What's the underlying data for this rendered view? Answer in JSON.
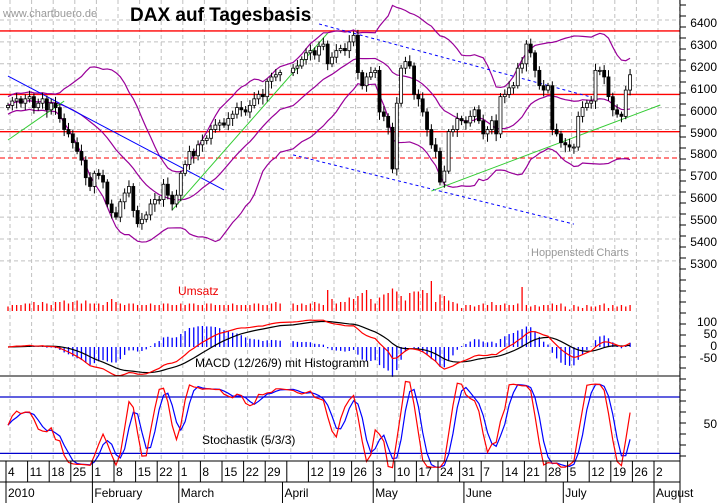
{
  "header": {
    "site": "www.chartbuero.de",
    "title": "DAX auf Tagesbasis",
    "credit": "Hoppenstedt Charts"
  },
  "panels": {
    "volume_label": "Umsatz",
    "macd_label": "MACD (12/26/9) mit Histogramm",
    "stoch_label": "Stochastik (5/3/3)"
  },
  "colors": {
    "candle_down": "#000000",
    "candle_up": "#ffffff",
    "bollinger": "#990099",
    "support_resistance": "#ff0000",
    "trend_down": "#0000ff",
    "trend_up": "#33cc33",
    "volume": "#ff0000",
    "macd": "#ff0000",
    "signal": "#000000",
    "histogram": "#0000ff",
    "stoch_k": "#ff0000",
    "stoch_d": "#0000ff",
    "grid": "#c0c0c0"
  },
  "chart_data": {
    "type": "candlestick",
    "title": "DAX auf Tagesbasis",
    "price_axis": {
      "ticks": [
        6400,
        6300,
        6200,
        6100,
        6000,
        5900,
        5800,
        5700,
        5600,
        5500,
        5400,
        5300
      ],
      "ylim": [
        5200,
        6450
      ]
    },
    "macd_axis": {
      "ticks": [
        100,
        50,
        0,
        -50
      ]
    },
    "stoch_axis": {
      "ticks": [
        50
      ],
      "levels": [
        80,
        20
      ]
    },
    "x_axis": {
      "day_labels": [
        "4",
        "11",
        "18",
        "25",
        "1",
        "8",
        "15",
        "22",
        "1",
        "8",
        "15",
        "22",
        "29",
        "",
        "12",
        "19",
        "26",
        "3",
        "10",
        "17",
        "24",
        "31",
        "7",
        "14",
        "21",
        "28",
        "5",
        "12",
        "19",
        "26",
        "2"
      ],
      "month_labels": [
        {
          "label": "2010",
          "week": 0
        },
        {
          "label": "February",
          "week": 4
        },
        {
          "label": "March",
          "week": 8
        },
        {
          "label": "April",
          "week": 12.8
        },
        {
          "label": "May",
          "week": 17
        },
        {
          "label": "June",
          "week": 21.2
        },
        {
          "label": "July",
          "week": 25.8
        },
        {
          "label": "August",
          "week": 30
        }
      ]
    },
    "weeks": [
      {
        "monday": "2010-01-04",
        "close": [
          6010,
          6030,
          6040,
          6020,
          6040
        ],
        "volume": [
          3,
          4,
          4,
          4,
          5
        ]
      },
      {
        "monday": "2010-01-11",
        "close": [
          6050,
          6000,
          6020,
          6040,
          5990
        ],
        "volume": [
          5,
          6,
          4,
          6,
          5
        ]
      },
      {
        "monday": "2010-01-18",
        "close": [
          6020,
          6000,
          5950,
          5900,
          5880
        ],
        "volume": [
          4,
          6,
          6,
          7,
          5
        ]
      },
      {
        "monday": "2010-01-25",
        "close": [
          5840,
          5800,
          5760,
          5680,
          5640
        ],
        "volume": [
          6,
          7,
          5,
          7,
          5
        ]
      },
      {
        "monday": "2010-02-01",
        "close": [
          5700,
          5690,
          5660,
          5560,
          5520
        ],
        "volume": [
          5,
          5,
          4,
          6,
          8
        ]
      },
      {
        "monday": "2010-02-08",
        "close": [
          5500,
          5570,
          5610,
          5640,
          5530
        ],
        "volume": [
          6,
          5,
          4,
          5,
          5
        ]
      },
      {
        "monday": "2010-02-15",
        "close": [
          5470,
          5490,
          5510,
          5560,
          5580
        ],
        "volume": [
          4,
          4,
          4,
          5,
          4
        ]
      },
      {
        "monday": "2010-02-22",
        "close": [
          5580,
          5650,
          5600,
          5560,
          5600
        ],
        "volume": [
          4,
          5,
          5,
          4,
          4
        ]
      },
      {
        "monday": "2010-03-01",
        "close": [
          5700,
          5740,
          5800,
          5780,
          5830
        ],
        "volume": [
          5,
          4,
          5,
          5,
          4
        ]
      },
      {
        "monday": "2010-03-08",
        "close": [
          5850,
          5860,
          5900,
          5920,
          5930
        ],
        "volume": [
          4,
          5,
          5,
          4,
          4
        ]
      },
      {
        "monday": "2010-03-15",
        "close": [
          5920,
          5950,
          5970,
          6000,
          5990
        ],
        "volume": [
          4,
          4,
          5,
          4,
          4
        ]
      },
      {
        "monday": "2010-03-22",
        "close": [
          5980,
          6010,
          6040,
          6060,
          6050
        ],
        "volume": [
          4,
          4,
          5,
          5,
          4
        ]
      },
      {
        "monday": "2010-03-29",
        "close": [
          6120,
          6140,
          6150,
          6160,
          null
        ],
        "volume": [
          4,
          5,
          6,
          5,
          null
        ]
      },
      {
        "monday": "2010-04-05",
        "close": [
          null,
          6180,
          6190,
          6220,
          6250
        ],
        "volume": [
          null,
          5,
          4,
          5,
          4
        ]
      },
      {
        "monday": "2010-04-12",
        "close": [
          6260,
          6240,
          6280,
          6290,
          6200
        ],
        "volume": [
          5,
          6,
          5,
          4,
          14
        ]
      },
      {
        "monday": "2010-04-19",
        "close": [
          6230,
          6260,
          6270,
          6260,
          6300
        ],
        "volume": [
          8,
          5,
          6,
          6,
          9
        ]
      },
      {
        "monday": "2010-04-26",
        "close": [
          6330,
          6160,
          6100,
          6140,
          6160
        ],
        "volume": [
          8,
          10,
          12,
          14,
          8
        ]
      },
      {
        "monday": "2010-05-03",
        "close": [
          6170,
          5980,
          5960,
          5910,
          5720
        ],
        "volume": [
          5,
          9,
          11,
          12,
          15
        ]
      },
      {
        "monday": "2010-05-10",
        "close": [
          6020,
          6180,
          6210,
          6190,
          6060
        ],
        "volume": [
          13,
          10,
          7,
          12,
          13
        ]
      },
      {
        "monday": "2010-05-17",
        "close": [
          6040,
          5980,
          5900,
          5830,
          5800
        ],
        "volume": [
          13,
          14,
          12,
          20,
          6
        ]
      },
      {
        "monday": "2010-05-24",
        "close": [
          5660,
          5710,
          5890,
          5900,
          5950
        ],
        "volume": [
          11,
          10,
          7,
          6,
          5
        ]
      },
      {
        "monday": "2010-05-31",
        "close": [
          5940,
          5930,
          5960,
          5990,
          5940
        ],
        "volume": [
          2,
          4,
          4,
          3,
          4
        ]
      },
      {
        "monday": "2010-06-07",
        "close": [
          5880,
          5900,
          5940,
          5880,
          6050
        ],
        "volume": [
          5,
          4,
          6,
          4,
          4
        ]
      },
      {
        "monday": "2010-06-14",
        "close": [
          6060,
          6090,
          6100,
          6180,
          6200
        ],
        "volume": [
          5,
          4,
          4,
          5,
          16
        ]
      },
      {
        "monday": "2010-06-21",
        "close": [
          6290,
          6250,
          6170,
          6100,
          6080
        ],
        "volume": [
          4,
          3,
          4,
          3,
          4
        ]
      },
      {
        "monday": "2010-06-28",
        "close": [
          6100,
          5900,
          5880,
          5840,
          5830
        ],
        "volume": [
          4,
          5,
          4,
          5,
          3
        ]
      },
      {
        "monday": "2010-07-05",
        "close": [
          5820,
          5820,
          5960,
          6000,
          6020
        ],
        "volume": [
          1,
          4,
          3,
          2,
          4
        ]
      },
      {
        "monday": "2010-07-12",
        "close": [
          6030,
          6170,
          6170,
          6140,
          6050
        ],
        "volume": [
          3,
          3,
          4,
          5,
          2
        ]
      },
      {
        "monday": "2010-07-19",
        "close": [
          5990,
          5970,
          5960,
          6080,
          6150
        ],
        "volume": [
          4,
          3,
          4,
          3,
          4
        ]
      }
    ],
    "levels": {
      "solid": [
        6350,
        6060,
        5890
      ],
      "dashed": [
        5770
      ]
    },
    "trendlines": [
      {
        "kind": "down",
        "style": "solid",
        "from": [
          "2010-01-04",
          6144
        ],
        "to": [
          "2010-03-15",
          5624
        ]
      },
      {
        "kind": "down",
        "style": "dashed",
        "from": [
          "2010-04-14",
          6382
        ],
        "to": [
          "2010-07-12",
          6048
        ]
      },
      {
        "kind": "down",
        "style": "dashed",
        "from": [
          "2010-04-06",
          5784
        ],
        "to": [
          "2010-07-06",
          5468
        ]
      },
      {
        "kind": "up",
        "style": "solid",
        "from": [
          "2010-01-04",
          5852
        ],
        "to": [
          "2010-01-21",
          6030
        ]
      },
      {
        "kind": "up",
        "style": "solid",
        "from": [
          "2010-02-25",
          5532
        ],
        "to": [
          "2010-04-16",
          6340
        ]
      },
      {
        "kind": "up",
        "style": "solid",
        "from": [
          "2010-05-20",
          5619
        ],
        "to": [
          "2010-08-03",
          6012
        ]
      }
    ],
    "indicators": {
      "bollinger": {
        "period": 20,
        "sd": 2
      },
      "macd": [
        12,
        26,
        9
      ],
      "stochastic": [
        5,
        3,
        3
      ]
    }
  }
}
